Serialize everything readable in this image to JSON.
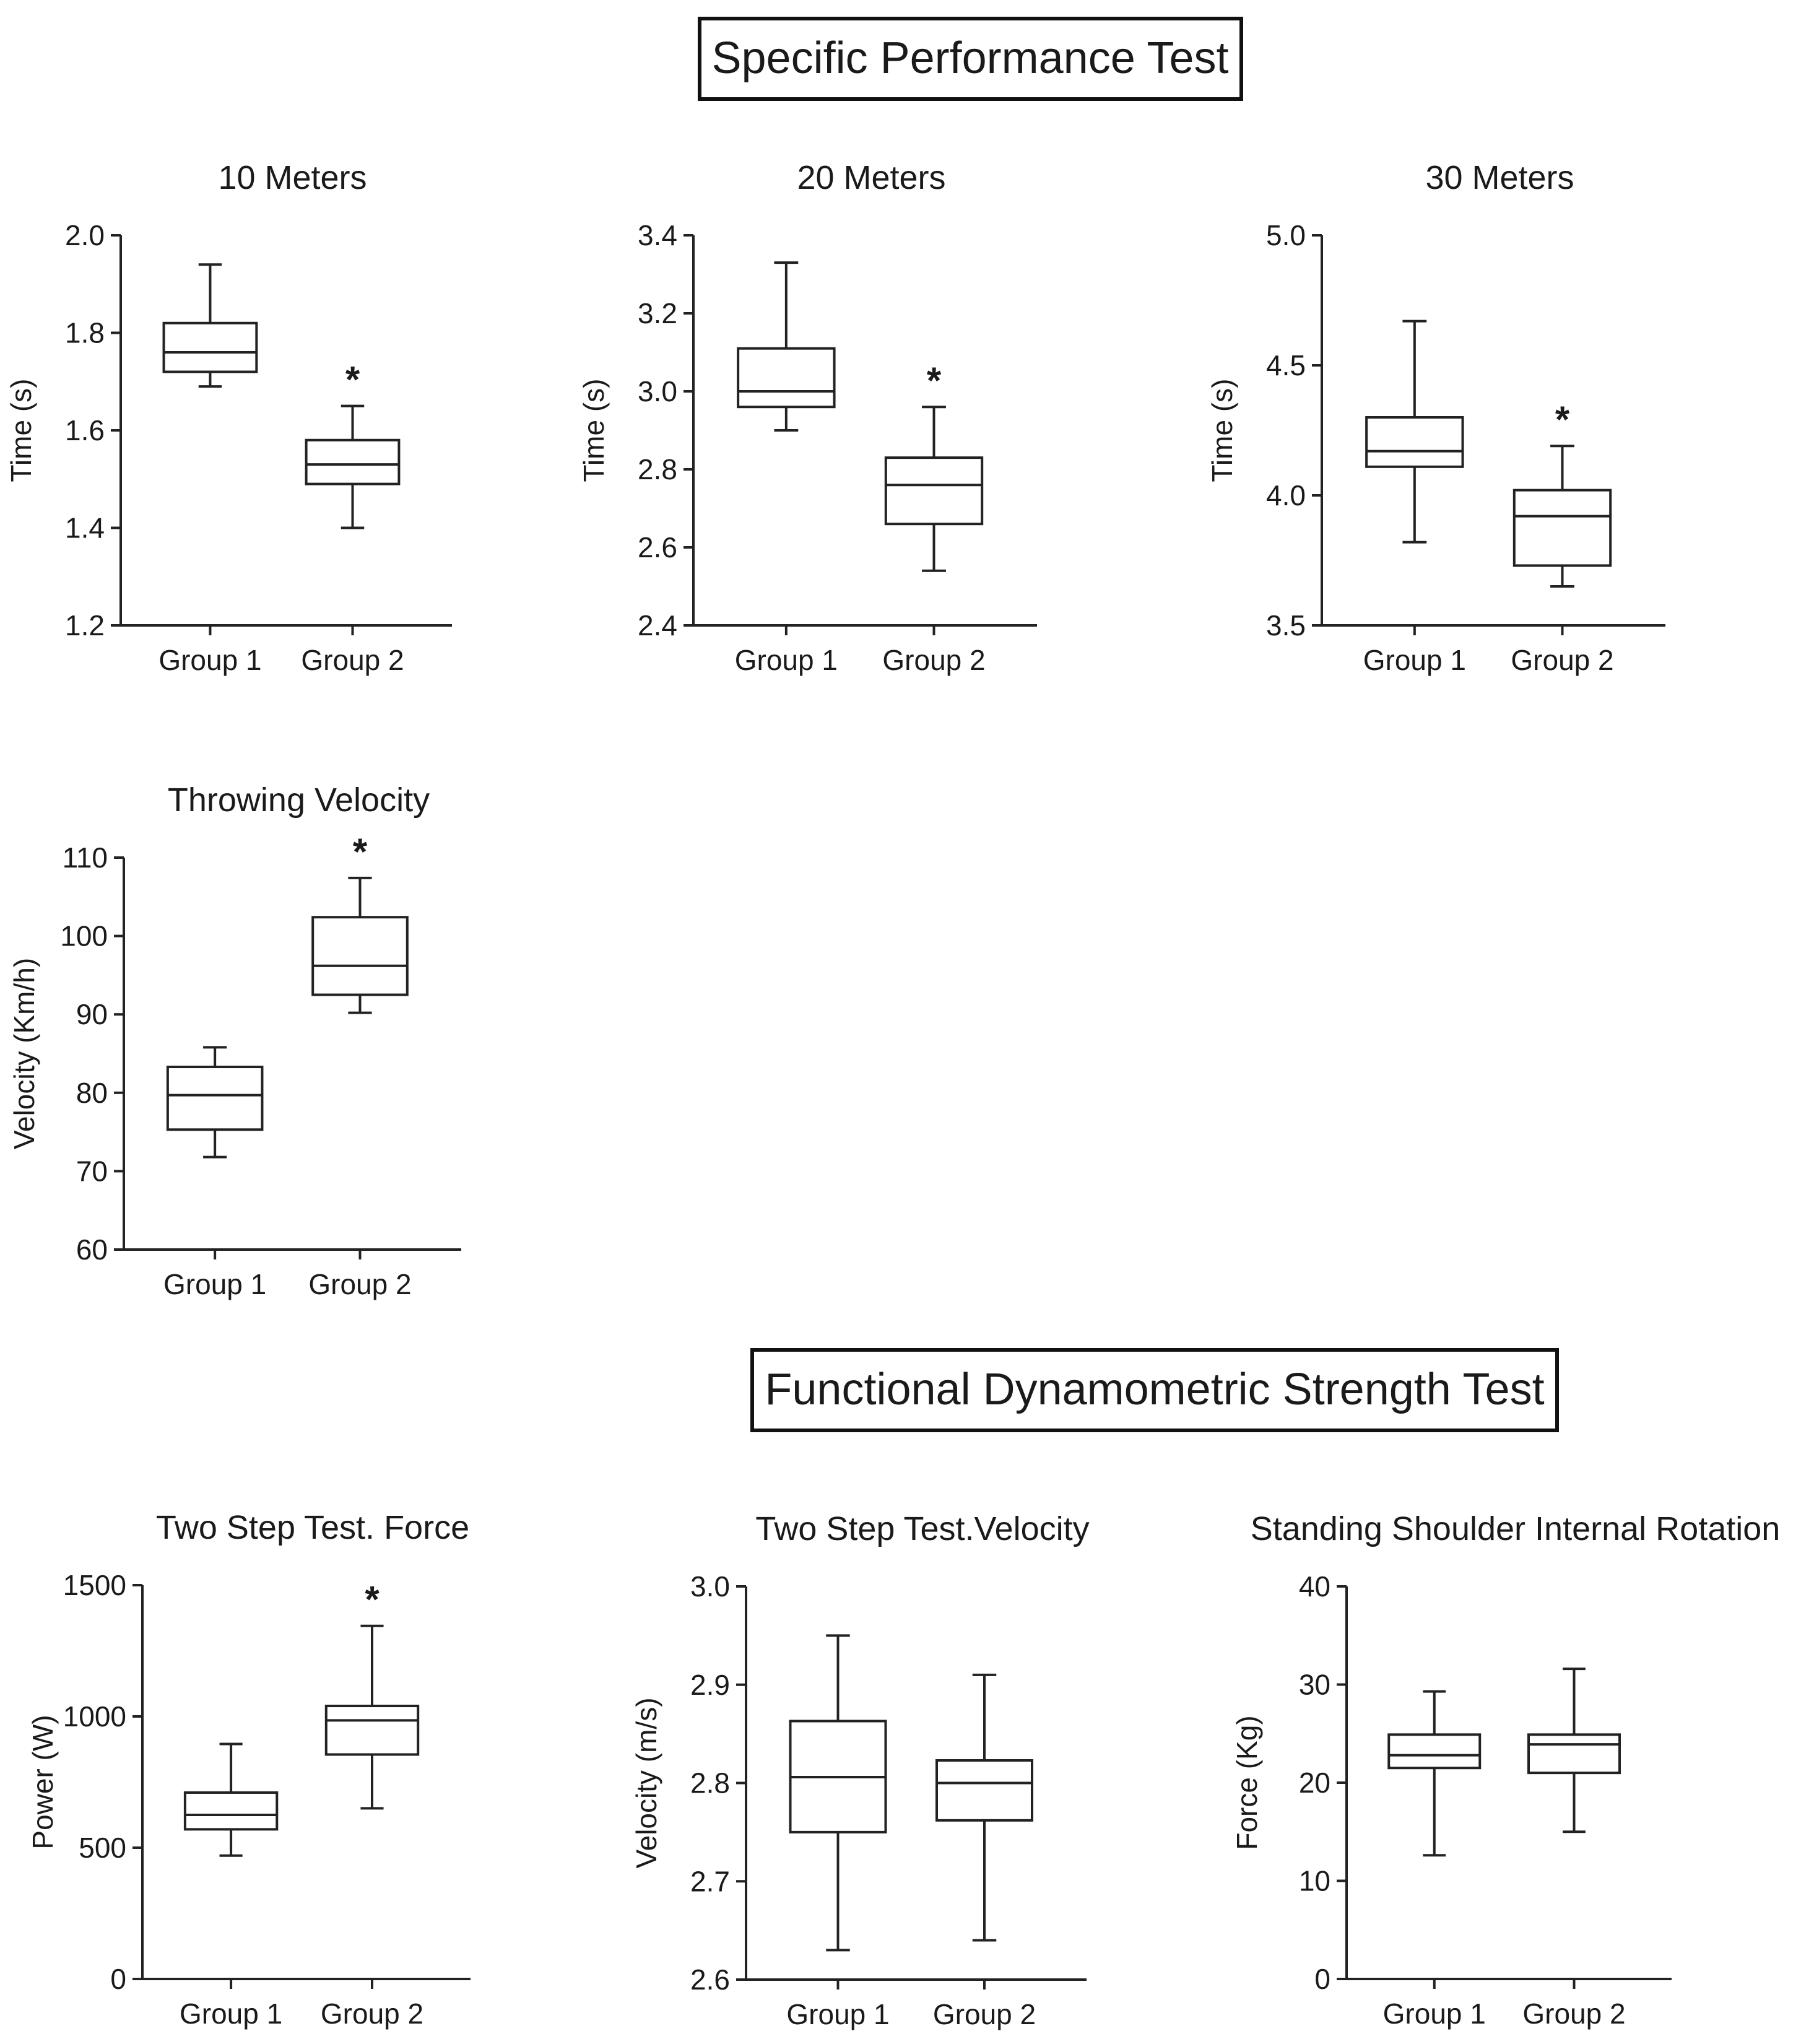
{
  "sections": {
    "specific": "Specific Performance Test",
    "functional": "Functional Dynamometric Strength Test"
  },
  "colors": {
    "ink": "#222222",
    "background": "#ffffff"
  },
  "chart_data": [
    {
      "type": "box",
      "title": "10 Meters",
      "xlabel": "",
      "ylabel": "Time (s)",
      "ylim": [
        1.2,
        2.0
      ],
      "yticks": [
        1.2,
        1.4,
        1.6,
        1.8,
        2.0
      ],
      "ytick_labels": [
        "1.2",
        "1.4",
        "1.6",
        "1.8",
        "2.0"
      ],
      "categories": [
        "Group 1",
        "Group 2"
      ],
      "boxes": [
        {
          "min": 1.69,
          "q1": 1.72,
          "median": 1.76,
          "q3": 1.82,
          "max": 1.94
        },
        {
          "min": 1.4,
          "q1": 1.49,
          "median": 1.53,
          "q3": 1.58,
          "max": 1.65
        }
      ],
      "significant": [
        false,
        true
      ],
      "significance_marker": "*"
    },
    {
      "type": "box",
      "title": "20 Meters",
      "xlabel": "",
      "ylabel": "Time (s)",
      "ylim": [
        2.4,
        3.4
      ],
      "yticks": [
        2.4,
        2.6,
        2.8,
        3.0,
        3.2,
        3.4
      ],
      "ytick_labels": [
        "2.4",
        "2.6",
        "2.8",
        "3.0",
        "3.2",
        "3.4"
      ],
      "categories": [
        "Group 1",
        "Group 2"
      ],
      "boxes": [
        {
          "min": 2.9,
          "q1": 2.96,
          "median": 3.0,
          "q3": 3.11,
          "max": 3.33
        },
        {
          "min": 2.54,
          "q1": 2.66,
          "median": 2.76,
          "q3": 2.83,
          "max": 2.96
        }
      ],
      "significant": [
        false,
        true
      ],
      "significance_marker": "*"
    },
    {
      "type": "box",
      "title": "30 Meters",
      "xlabel": "",
      "ylabel": "Time (s)",
      "ylim": [
        3.5,
        5.0
      ],
      "yticks": [
        3.5,
        4.0,
        4.5,
        5.0
      ],
      "ytick_labels": [
        "3.5",
        "4.0",
        "4.5",
        "5.0"
      ],
      "categories": [
        "Group 1",
        "Group 2"
      ],
      "boxes": [
        {
          "min": 3.82,
          "q1": 4.11,
          "median": 4.17,
          "q3": 4.3,
          "max": 4.67
        },
        {
          "min": 3.65,
          "q1": 3.73,
          "median": 3.92,
          "q3": 4.02,
          "max": 4.19
        }
      ],
      "significant": [
        false,
        true
      ],
      "significance_marker": "*"
    },
    {
      "type": "box",
      "title": "Throwing Velocity",
      "xlabel": "",
      "ylabel": "Velocity (Km/h)",
      "ylim": [
        60,
        110
      ],
      "yticks": [
        60,
        70,
        80,
        90,
        100,
        110
      ],
      "ytick_labels": [
        "60",
        "70",
        "80",
        "90",
        "100",
        "110"
      ],
      "categories": [
        "Group 1",
        "Group 2"
      ],
      "boxes": [
        {
          "min": 71.8,
          "q1": 75.3,
          "median": 79.7,
          "q3": 83.3,
          "max": 85.8
        },
        {
          "min": 90.2,
          "q1": 92.5,
          "median": 96.2,
          "q3": 102.4,
          "max": 107.4
        }
      ],
      "significant": [
        false,
        true
      ],
      "significance_marker": "*"
    },
    {
      "type": "box",
      "title": "Two Step Test. Force",
      "xlabel": "",
      "ylabel": "Power (W)",
      "ylim": [
        0,
        1500
      ],
      "yticks": [
        0,
        500,
        1000,
        1500
      ],
      "ytick_labels": [
        "0",
        "500",
        "1000",
        "1500"
      ],
      "categories": [
        "Group 1",
        "Group 2"
      ],
      "boxes": [
        {
          "min": 470,
          "q1": 570,
          "median": 625,
          "q3": 710,
          "max": 895
        },
        {
          "min": 650,
          "q1": 855,
          "median": 985,
          "q3": 1040,
          "max": 1345
        }
      ],
      "significant": [
        false,
        true
      ],
      "significance_marker": "*"
    },
    {
      "type": "box",
      "title": "Two Step Test.Velocity",
      "xlabel": "",
      "ylabel": "Velocity (m/s)",
      "ylim": [
        2.6,
        3.0
      ],
      "yticks": [
        2.6,
        2.7,
        2.8,
        2.9,
        3.0
      ],
      "ytick_labels": [
        "2.6",
        "2.7",
        "2.8",
        "2.9",
        "3.0"
      ],
      "categories": [
        "Group 1",
        "Group 2"
      ],
      "boxes": [
        {
          "min": 2.63,
          "q1": 2.75,
          "median": 2.806,
          "q3": 2.863,
          "max": 2.95
        },
        {
          "min": 2.64,
          "q1": 2.762,
          "median": 2.8,
          "q3": 2.823,
          "max": 2.91
        }
      ],
      "significant": [
        false,
        false
      ],
      "significance_marker": "*"
    },
    {
      "type": "box",
      "title": "Standing Shoulder Internal Rotation",
      "xlabel": "",
      "ylabel": "Force (Kg)",
      "ylim": [
        0,
        40
      ],
      "yticks": [
        0,
        10,
        20,
        30,
        40
      ],
      "ytick_labels": [
        "0",
        "10",
        "20",
        "30",
        "40"
      ],
      "categories": [
        "Group 1",
        "Group 2"
      ],
      "boxes": [
        {
          "min": 12.6,
          "q1": 21.5,
          "median": 22.8,
          "q3": 24.9,
          "max": 29.3
        },
        {
          "min": 15.0,
          "q1": 21.0,
          "median": 23.9,
          "q3": 24.9,
          "max": 31.6
        }
      ],
      "significant": [
        false,
        false
      ],
      "significance_marker": "*"
    }
  ]
}
